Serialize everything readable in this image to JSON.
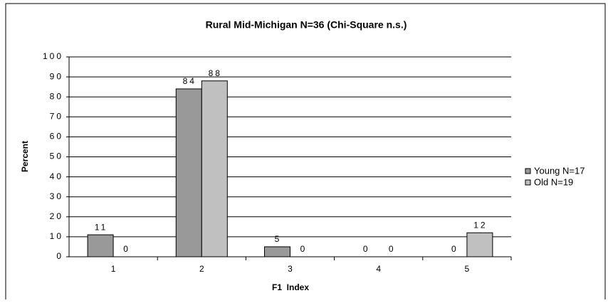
{
  "chart_data": {
    "type": "bar",
    "title": "Rural  Mid-Michigan  N=36  (Chi-Square  n.s.)",
    "x_label": "F1  Index",
    "y_label": "Percent",
    "categories": [
      "1",
      "2",
      "3",
      "4",
      "5"
    ],
    "series": [
      {
        "name": "Young N=17",
        "color": "#999999",
        "values": [
          11,
          84,
          5,
          0,
          0
        ]
      },
      {
        "name": "Old N=19",
        "color": "#c0c0c0",
        "values": [
          0,
          88,
          0,
          0,
          12
        ]
      }
    ],
    "ylim": [
      0,
      100
    ],
    "yticks": [
      0,
      10,
      20,
      30,
      40,
      50,
      60,
      70,
      80,
      90,
      100
    ],
    "grid": true,
    "legend": "right"
  }
}
